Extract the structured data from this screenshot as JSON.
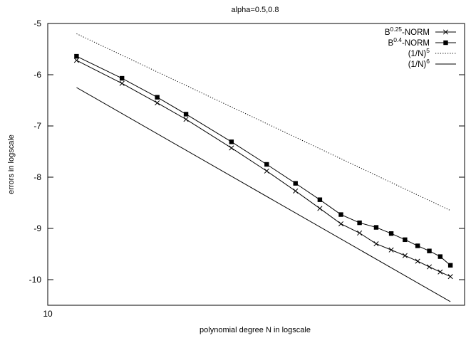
{
  "chart_data": {
    "type": "line",
    "title": "alpha=0.5,0.8",
    "xlabel": "polynomial degree N in logscale",
    "ylabel": "errors in logscale",
    "xscale": "log",
    "xlim": [
      10,
      140
    ],
    "ylim": [
      -10.5,
      -5
    ],
    "x_ticks": [
      {
        "value": 10,
        "label": "10"
      }
    ],
    "y_ticks": [
      {
        "value": -5,
        "label": "-5"
      },
      {
        "value": -6,
        "label": "-6"
      },
      {
        "value": -7,
        "label": "-7"
      },
      {
        "value": -8,
        "label": "-8"
      },
      {
        "value": -9,
        "label": "-9"
      },
      {
        "value": -10,
        "label": "-10"
      }
    ],
    "grid": false,
    "legend_position": "top-right",
    "series": [
      {
        "name": "B^{0.25}-NORM",
        "legend": {
          "base": "B",
          "sup": "0.25",
          "rest": "-NORM"
        },
        "style": "line-cross",
        "x": [
          12,
          16,
          20,
          24,
          32,
          40,
          48,
          56,
          64,
          72,
          80,
          88,
          96,
          104,
          112,
          120,
          128
        ],
        "y": [
          -5.72,
          -6.17,
          -6.55,
          -6.87,
          -7.43,
          -7.88,
          -8.27,
          -8.61,
          -8.91,
          -9.09,
          -9.3,
          -9.42,
          -9.53,
          -9.64,
          -9.75,
          -9.85,
          -9.94
        ]
      },
      {
        "name": "B^{0.4}-NORM",
        "legend": {
          "base": "B",
          "sup": "0.4",
          "rest": "-NORM"
        },
        "style": "line-square",
        "x": [
          12,
          16,
          20,
          24,
          32,
          40,
          48,
          56,
          64,
          72,
          80,
          88,
          96,
          104,
          112,
          120,
          128
        ],
        "y": [
          -5.64,
          -6.07,
          -6.44,
          -6.77,
          -7.31,
          -7.75,
          -8.12,
          -8.44,
          -8.73,
          -8.89,
          -8.98,
          -9.1,
          -9.22,
          -9.34,
          -9.44,
          -9.55,
          -9.72
        ]
      },
      {
        "name": "(1/N)^5",
        "legend": {
          "base": "(1/N)",
          "sup": "5",
          "rest": ""
        },
        "style": "dotted",
        "x": [
          12,
          128
        ],
        "y": [
          -5.2,
          -8.65
        ]
      },
      {
        "name": "(1/N)^6",
        "legend": {
          "base": "(1/N)",
          "sup": "6",
          "rest": ""
        },
        "style": "solid",
        "x": [
          12,
          128
        ],
        "y": [
          -6.25,
          -10.43
        ]
      }
    ]
  }
}
